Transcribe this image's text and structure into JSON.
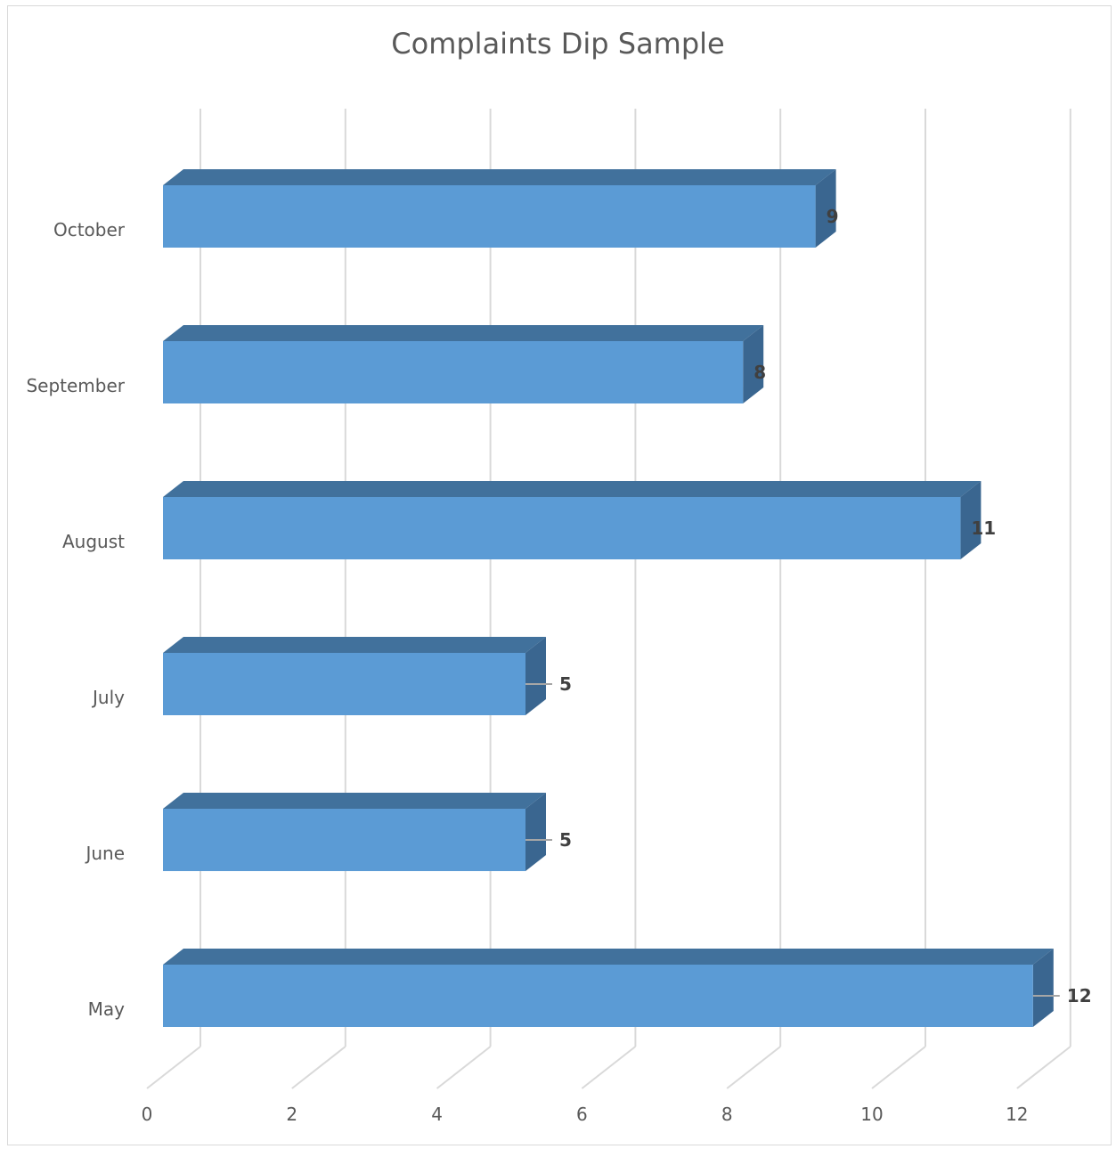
{
  "chart_data": {
    "type": "bar",
    "orientation": "horizontal",
    "three_d": true,
    "title": "Complaints Dip Sample",
    "categories": [
      "May",
      "June",
      "July",
      "August",
      "September",
      "October"
    ],
    "values": [
      12,
      5,
      5,
      11,
      8,
      9
    ],
    "data_labels": [
      "12",
      "5",
      "5",
      "11",
      "8",
      "9"
    ],
    "xlabel": "",
    "ylabel": "",
    "xlim": [
      0,
      12
    ],
    "x_ticks": [
      0,
      2,
      4,
      6,
      8,
      10,
      12
    ],
    "x_tick_labels": [
      "0",
      "2",
      "4",
      "6",
      "8",
      "10",
      "12"
    ],
    "grid": true,
    "legend": "none",
    "colors": {
      "bar_front": "#5b9bd5",
      "bar_top": "#41719c",
      "bar_side": "#3a6690",
      "gridline": "#d9d9d9",
      "axis_text": "#595959",
      "label_text": "#404040",
      "leader_line": "#a6a6a6"
    }
  }
}
